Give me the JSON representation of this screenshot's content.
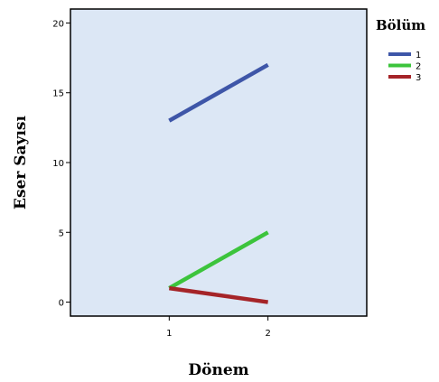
{
  "chart_data": {
    "type": "line",
    "xlabel": "Dönem",
    "ylabel": "Eser Sayısı",
    "x": [
      "1",
      "2"
    ],
    "xlim": [
      0,
      3
    ],
    "ylim": [
      -1,
      21
    ],
    "yticks": [
      "0",
      "5",
      "10",
      "15",
      "20"
    ],
    "grid": false,
    "plot_background": "#dce7f5",
    "legend": {
      "title": "Bölüm",
      "placement": "right"
    },
    "series": [
      {
        "name": "1",
        "values": [
          13,
          17
        ],
        "color": "#3e56a8"
      },
      {
        "name": "2",
        "values": [
          1,
          5
        ],
        "color": "#3cc43c"
      },
      {
        "name": "3",
        "values": [
          1,
          0
        ],
        "color": "#a52428"
      }
    ]
  }
}
